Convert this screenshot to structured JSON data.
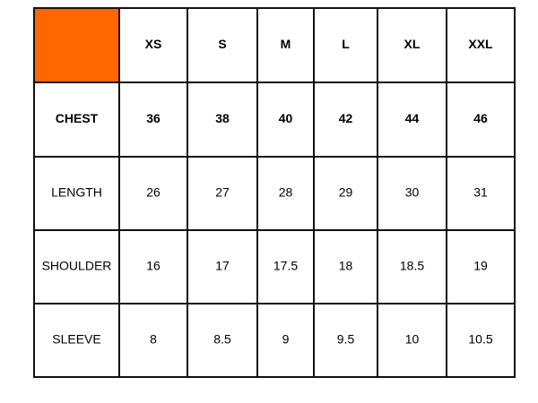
{
  "table": {
    "header": [
      "XS",
      "S",
      "M",
      "L",
      "XL",
      "XXL"
    ],
    "rows": [
      [
        "CHEST",
        "36",
        "38",
        "40",
        "42",
        "44",
        "46"
      ],
      [
        "LENGTH",
        "26",
        "27",
        "28",
        "29",
        "30",
        "31"
      ],
      [
        "SHOULDER",
        "16",
        "17",
        "17.5",
        "18",
        "18.5",
        "19"
      ],
      [
        "SLEEVE",
        "8",
        "8.5",
        "9",
        "9.5",
        "10",
        "10.5"
      ]
    ]
  }
}
